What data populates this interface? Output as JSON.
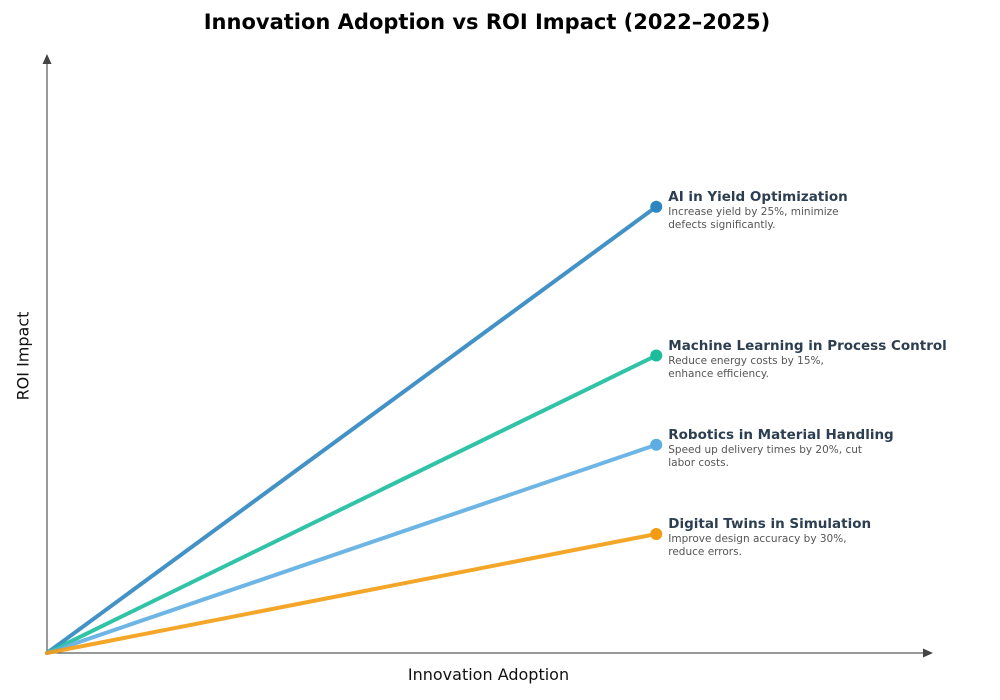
{
  "chart_data": {
    "type": "line",
    "title": "Innovation Adoption vs ROI Impact (2022–2025)",
    "xlabel": "Innovation Adoption",
    "ylabel": "ROI Impact",
    "xlim": [
      0,
      1
    ],
    "ylim": [
      0,
      1
    ],
    "grid": false,
    "legend": "none",
    "series": [
      {
        "name": "AI in Yield Optimization",
        "description": "Increase yield by 25%, minimize defects significantly.",
        "x": [
          0,
          0.69
        ],
        "y": [
          0,
          0.75
        ],
        "color": "#2e86c1"
      },
      {
        "name": "Machine Learning in Process Control",
        "description": "Reduce energy costs by 15%, enhance efficiency.",
        "x": [
          0,
          0.69
        ],
        "y": [
          0,
          0.5
        ],
        "color": "#1abc9c"
      },
      {
        "name": "Robotics in Material Handling",
        "description": "Speed up delivery times by 20%, cut labor costs.",
        "x": [
          0,
          0.69
        ],
        "y": [
          0,
          0.35
        ],
        "color": "#5dade2"
      },
      {
        "name": "Digital Twins in Simulation",
        "description": "Improve design accuracy by 30%, reduce errors.",
        "x": [
          0,
          0.69
        ],
        "y": [
          0,
          0.2
        ],
        "color": "#f39c12"
      }
    ]
  }
}
